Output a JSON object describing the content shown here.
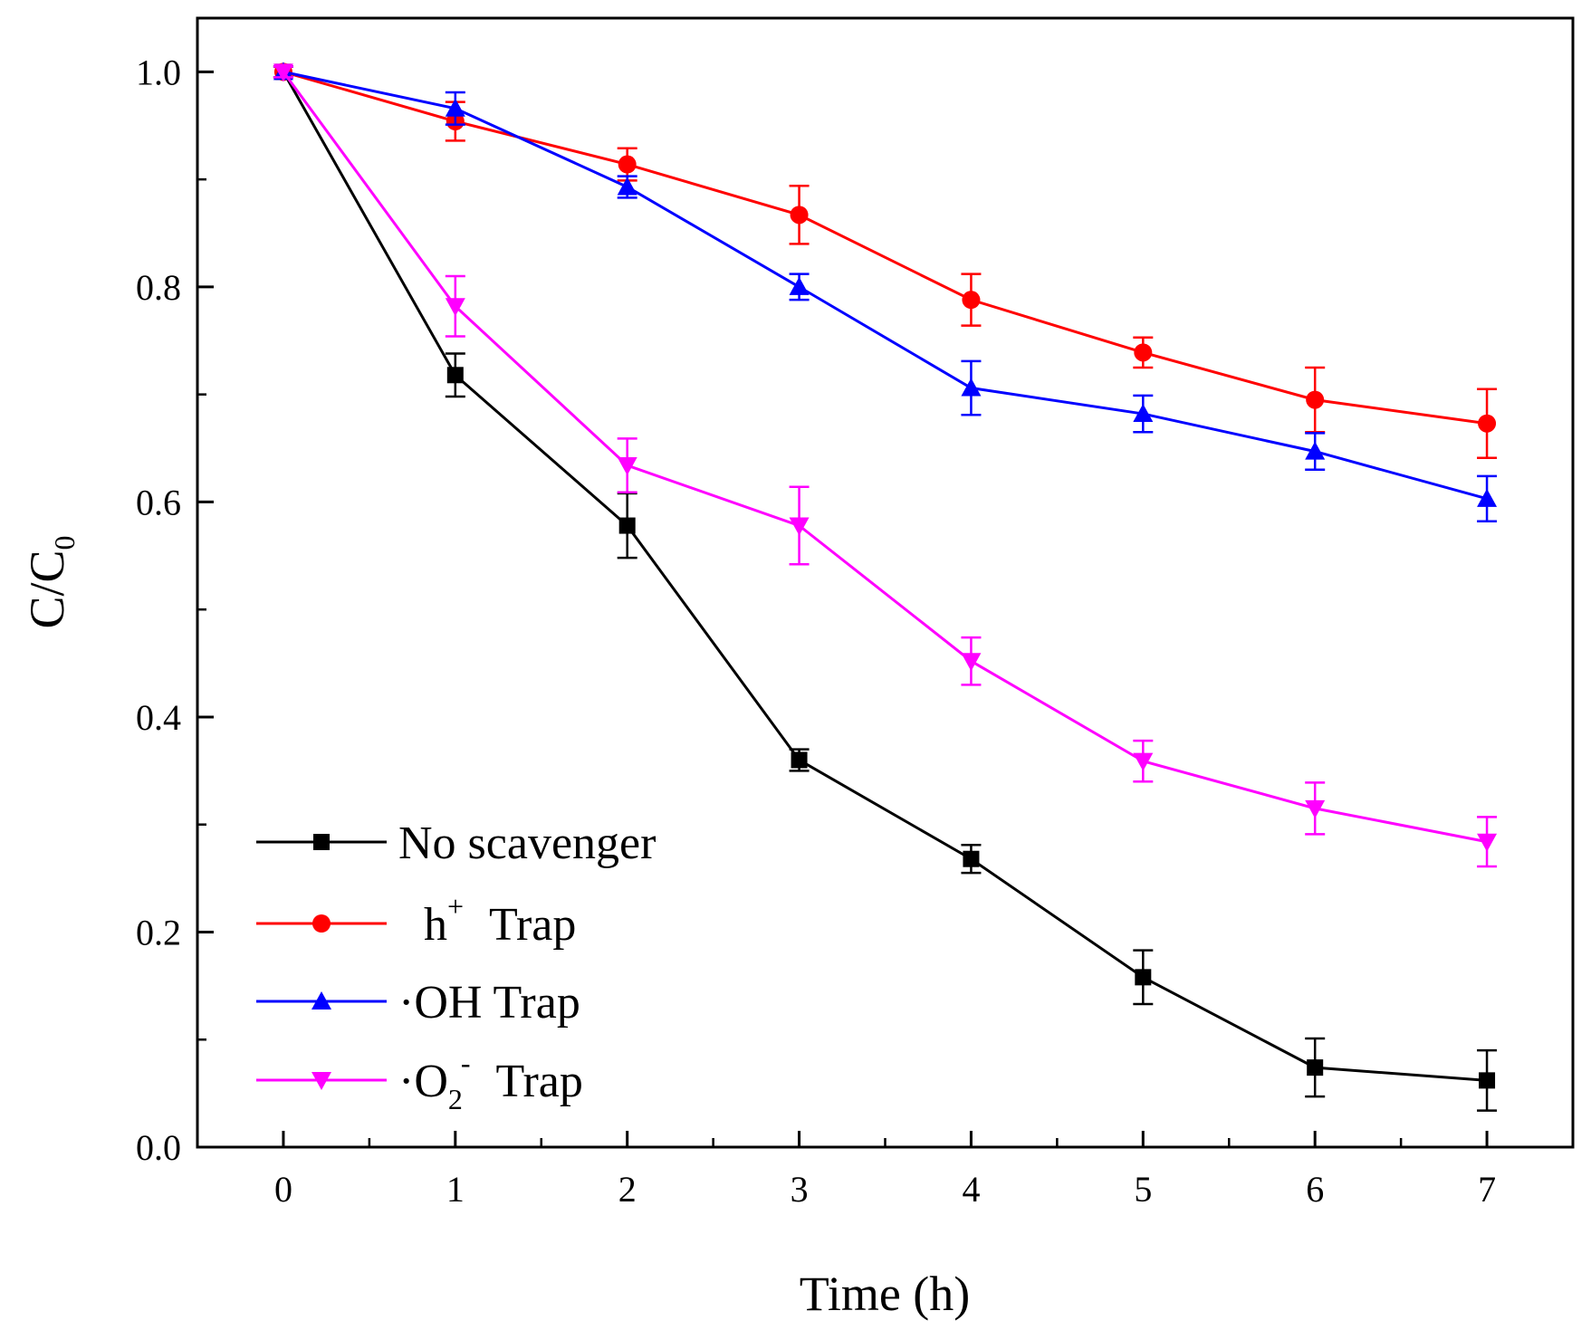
{
  "chart_data": {
    "type": "line",
    "title": "",
    "xlabel": "Time (h)",
    "ylabel_main": "C/C",
    "ylabel_sub": "0",
    "xlim": [
      -0.5,
      7.5
    ],
    "ylim": [
      0.0,
      1.05
    ],
    "x": [
      0,
      1,
      2,
      3,
      4,
      5,
      6,
      7
    ],
    "x_ticks": [
      "0",
      "1",
      "2",
      "3",
      "4",
      "5",
      "6",
      "7"
    ],
    "y_ticks": [
      0.0,
      0.2,
      0.4,
      0.6,
      0.8,
      1.0
    ],
    "y_tick_labels": [
      "0.0",
      "0.2",
      "0.4",
      "0.6",
      "0.8",
      "1.0"
    ],
    "grid": false,
    "legend_position": "bottom-left",
    "series": [
      {
        "name": "No scavenger",
        "color": "#000000",
        "marker": "square",
        "values": [
          1.0,
          0.718,
          0.578,
          0.36,
          0.268,
          0.158,
          0.074,
          0.062
        ],
        "errors": [
          0.005,
          0.02,
          0.03,
          0.01,
          0.013,
          0.025,
          0.027,
          0.028
        ]
      },
      {
        "name": "h+ Trap",
        "color": "#ff0000",
        "marker": "circle",
        "values": [
          1.0,
          0.954,
          0.914,
          0.867,
          0.788,
          0.739,
          0.695,
          0.673
        ],
        "errors": [
          0.005,
          0.018,
          0.015,
          0.027,
          0.024,
          0.014,
          0.03,
          0.032
        ]
      },
      {
        "name": "·OH Trap",
        "color": "#0000ff",
        "marker": "triangle-up",
        "values": [
          1.0,
          0.966,
          0.893,
          0.8,
          0.706,
          0.682,
          0.647,
          0.603
        ],
        "errors": [
          0.005,
          0.015,
          0.01,
          0.012,
          0.025,
          0.017,
          0.017,
          0.021
        ]
      },
      {
        "name": "·O2- Trap",
        "color": "#ff00ff",
        "marker": "triangle-down",
        "values": [
          1.0,
          0.782,
          0.634,
          0.578,
          0.452,
          0.359,
          0.315,
          0.284
        ],
        "errors": [
          0.005,
          0.028,
          0.025,
          0.036,
          0.022,
          0.019,
          0.024,
          0.023
        ]
      }
    ],
    "legend": [
      {
        "main": "No scavenger",
        "sup": "",
        "sub": "",
        "rest": ""
      },
      {
        "main": "h",
        "sup": "+",
        "sub": "",
        "rest": "Trap"
      },
      {
        "main": "·OH Trap",
        "sup": "",
        "sub": "",
        "rest": ""
      },
      {
        "main": "·O",
        "sup": "-",
        "sub": "2",
        "rest": "Trap"
      }
    ]
  }
}
